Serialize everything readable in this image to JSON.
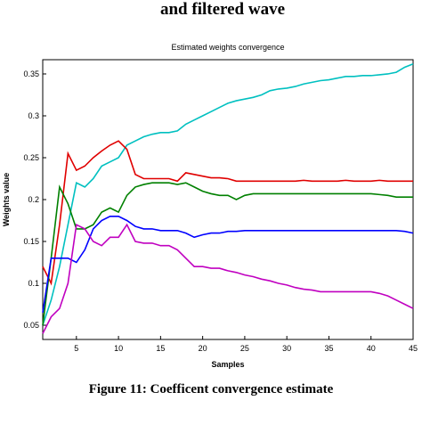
{
  "header": {
    "text": "and filtered wave"
  },
  "caption": {
    "text": "Figure 11: Coefficent convergence estimate"
  },
  "chart_data": {
    "type": "line",
    "title": "Estimated weights convergence",
    "x_label": "Samples",
    "y_label": "Weights value",
    "x": [
      1,
      2,
      3,
      4,
      5,
      6,
      7,
      8,
      9,
      10,
      11,
      12,
      13,
      14,
      15,
      16,
      17,
      18,
      19,
      20,
      21,
      22,
      23,
      24,
      25,
      26,
      27,
      28,
      29,
      30,
      31,
      32,
      33,
      34,
      35,
      36,
      37,
      38,
      39,
      40,
      41,
      42,
      43,
      44,
      45
    ],
    "xlim": [
      1,
      45
    ],
    "xticks": [
      5,
      10,
      15,
      20,
      25,
      30,
      35,
      40,
      45
    ],
    "ylim": [
      0.033,
      0.367
    ],
    "yticks": [
      0.05,
      0.1,
      0.15,
      0.2,
      0.25,
      0.3,
      0.35
    ],
    "grid": false,
    "series": [
      {
        "color": "#00c0c0",
        "values": [
          0.05,
          0.08,
          0.12,
          0.17,
          0.22,
          0.215,
          0.225,
          0.24,
          0.245,
          0.25,
          0.265,
          0.27,
          0.275,
          0.278,
          0.28,
          0.28,
          0.282,
          0.29,
          0.295,
          0.3,
          0.305,
          0.31,
          0.315,
          0.318,
          0.32,
          0.322,
          0.325,
          0.33,
          0.332,
          0.333,
          0.335,
          0.338,
          0.34,
          0.342,
          0.343,
          0.345,
          0.347,
          0.347,
          0.348,
          0.348,
          0.349,
          0.35,
          0.352,
          0.358,
          0.362
        ]
      },
      {
        "color": "#e00000",
        "values": [
          0.12,
          0.1,
          0.17,
          0.255,
          0.235,
          0.24,
          0.25,
          0.258,
          0.265,
          0.27,
          0.26,
          0.23,
          0.225,
          0.225,
          0.225,
          0.225,
          0.222,
          0.232,
          0.23,
          0.228,
          0.226,
          0.226,
          0.225,
          0.222,
          0.222,
          0.222,
          0.222,
          0.222,
          0.222,
          0.222,
          0.222,
          0.223,
          0.222,
          0.222,
          0.222,
          0.222,
          0.223,
          0.222,
          0.222,
          0.222,
          0.223,
          0.222,
          0.222,
          0.222,
          0.222
        ]
      },
      {
        "color": "#008000",
        "values": [
          0.05,
          0.13,
          0.215,
          0.195,
          0.165,
          0.165,
          0.17,
          0.185,
          0.19,
          0.185,
          0.205,
          0.215,
          0.218,
          0.22,
          0.22,
          0.22,
          0.218,
          0.22,
          0.215,
          0.21,
          0.207,
          0.205,
          0.205,
          0.2,
          0.205,
          0.207,
          0.207,
          0.207,
          0.207,
          0.207,
          0.207,
          0.207,
          0.207,
          0.207,
          0.207,
          0.207,
          0.207,
          0.207,
          0.207,
          0.207,
          0.206,
          0.205,
          0.203,
          0.203,
          0.203
        ]
      },
      {
        "color": "#0000ff",
        "values": [
          0.065,
          0.13,
          0.13,
          0.13,
          0.125,
          0.14,
          0.165,
          0.175,
          0.18,
          0.18,
          0.175,
          0.168,
          0.165,
          0.165,
          0.163,
          0.163,
          0.163,
          0.16,
          0.155,
          0.158,
          0.16,
          0.16,
          0.162,
          0.162,
          0.163,
          0.163,
          0.163,
          0.163,
          0.163,
          0.163,
          0.163,
          0.163,
          0.163,
          0.163,
          0.163,
          0.163,
          0.163,
          0.163,
          0.163,
          0.163,
          0.163,
          0.163,
          0.163,
          0.162,
          0.16
        ]
      },
      {
        "color": "#c000c0",
        "values": [
          0.04,
          0.06,
          0.07,
          0.1,
          0.17,
          0.165,
          0.15,
          0.145,
          0.155,
          0.155,
          0.17,
          0.15,
          0.148,
          0.148,
          0.145,
          0.145,
          0.14,
          0.13,
          0.12,
          0.12,
          0.118,
          0.118,
          0.115,
          0.113,
          0.11,
          0.108,
          0.105,
          0.103,
          0.1,
          0.098,
          0.095,
          0.093,
          0.092,
          0.09,
          0.09,
          0.09,
          0.09,
          0.09,
          0.09,
          0.09,
          0.088,
          0.085,
          0.08,
          0.075,
          0.07
        ]
      }
    ]
  }
}
